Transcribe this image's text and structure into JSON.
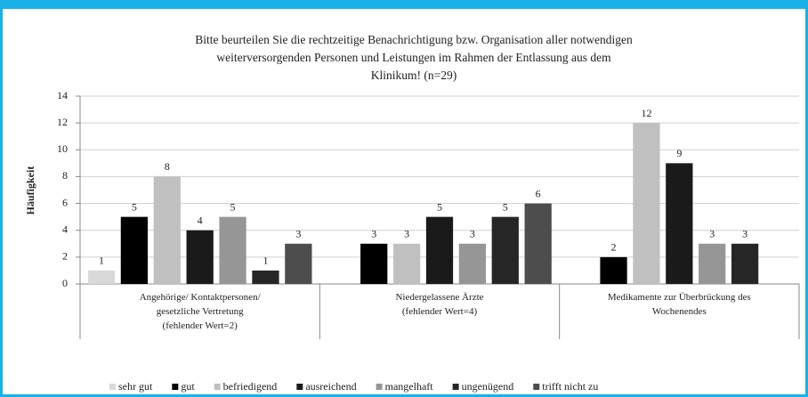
{
  "chart_data": {
    "type": "bar",
    "title": "Bitte beurteilen Sie die rechtzeitige Benachrichtigung bzw. Organisation aller notwendigen\nweiterversorgenden Personen und Leistungen im Rahmen der Entlassung aus dem\nKlinikum! (n=29)",
    "ylabel": "Häufigkeit",
    "categories": [
      "Angehörige/ Kontaktpersonen/\ngesetzliche Vertretung\n(fehlender Wert=2)",
      "Niedergelassene Ärzte\n(fehlender Wert=4)",
      "Medikamente zur Überbrückung des\nWochenendes"
    ],
    "series": [
      {
        "name": "sehr gut",
        "color": "#d9d9d9",
        "values": [
          1,
          null,
          null
        ]
      },
      {
        "name": "gut",
        "color": "#000000",
        "values": [
          5,
          3,
          2
        ]
      },
      {
        "name": "befriedigend",
        "color": "#c0c0c0",
        "values": [
          8,
          3,
          12
        ]
      },
      {
        "name": "ausreichend",
        "color": "#1a1a1a",
        "values": [
          4,
          5,
          9
        ]
      },
      {
        "name": "mangelhaft",
        "color": "#969696",
        "values": [
          5,
          3,
          3
        ]
      },
      {
        "name": "ungenügend",
        "color": "#262626",
        "values": [
          1,
          5,
          3
        ]
      },
      {
        "name": "trifft nicht zu",
        "color": "#4d4d4d",
        "values": [
          3,
          6,
          null
        ]
      }
    ],
    "ylim": [
      0,
      14
    ],
    "yticks": [
      0,
      2,
      4,
      6,
      8,
      10,
      12,
      14
    ],
    "grid": true
  }
}
